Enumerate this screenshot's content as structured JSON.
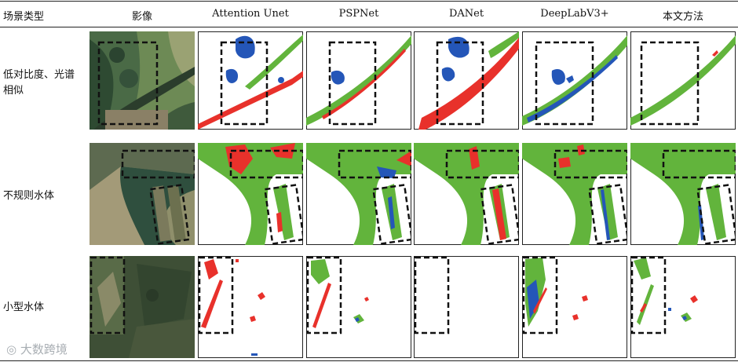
{
  "table": {
    "columns": [
      "场景类型",
      "影像",
      "Attention Unet",
      "PSPNet",
      "DANet",
      "DeepLabV3+",
      "本文方法"
    ],
    "rows": [
      {
        "scene": "低对比度、光谱相似"
      },
      {
        "scene": "不规则水体"
      },
      {
        "scene": "小型水体"
      }
    ]
  },
  "legend_colors": {
    "correct_water": "#62b43c",
    "false_positive": "#e8312b",
    "false_negative": "#2456b8",
    "background": "#ffffff",
    "roi_box": "#111111"
  },
  "watermark": "大数跨境"
}
